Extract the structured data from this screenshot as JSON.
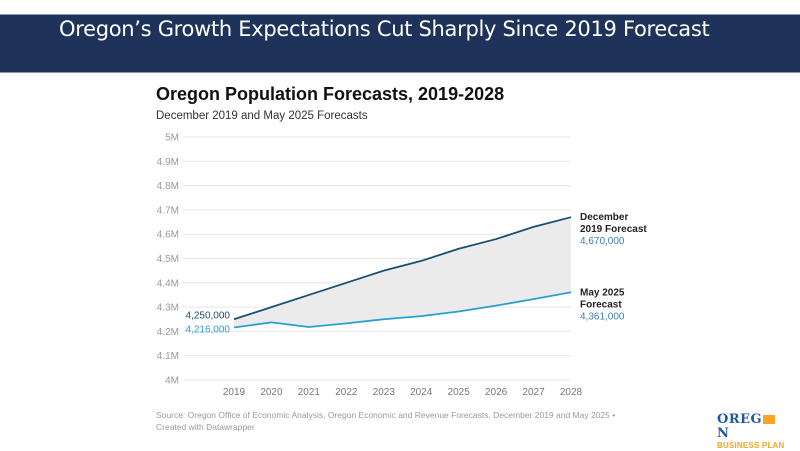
{
  "banner": {
    "title": "Oregon’s Growth Expectations Cut Sharply Since 2019 Forecast"
  },
  "chart_data": {
    "type": "line",
    "title": "Oregon Population Forecasts, 2019-2028",
    "subtitle": "December 2019 and May 2025 Forecasts",
    "xlabel": "",
    "ylabel": "",
    "x": [
      2019,
      2020,
      2021,
      2022,
      2023,
      2024,
      2025,
      2026,
      2027,
      2028
    ],
    "ylim": [
      4000000,
      5000000
    ],
    "yticks": [
      4000000,
      4100000,
      4200000,
      4300000,
      4400000,
      4500000,
      4600000,
      4700000,
      4800000,
      4900000,
      5000000
    ],
    "ytick_labels": [
      "4M",
      "4.1M",
      "4.2M",
      "4.3M",
      "4.4M",
      "4.5M",
      "4.6M",
      "4.7M",
      "4.8M",
      "4.9M",
      "5M"
    ],
    "xtick_labels": [
      "2019",
      "2020",
      "2021",
      "2022",
      "2023",
      "2024",
      "2025",
      "2026",
      "2027",
      "2028"
    ],
    "grid": true,
    "area_between_series": true,
    "series": [
      {
        "name": "December 2019 Forecast",
        "label_lines": [
          "December",
          "2019 Forecast"
        ],
        "color": "#1b4f72",
        "values": [
          4250000,
          4300000,
          4350000,
          4400000,
          4450000,
          4490000,
          4540000,
          4580000,
          4630000,
          4670000
        ],
        "start_label": "4,250,000",
        "end_label": "4,670,000"
      },
      {
        "name": "May 2025 Forecast",
        "label_lines": [
          "May 2025",
          "Forecast"
        ],
        "color": "#2a9fd0",
        "values": [
          4216000,
          4237000,
          4218000,
          4233000,
          4250000,
          4263000,
          4282000,
          4306000,
          4333000,
          4361000
        ],
        "start_label": "4,216,000",
        "end_label": "4,361,000"
      }
    ],
    "colors": {
      "area_fill": "#ebebeb",
      "grid": "#e6e6e6",
      "end_value_text": "#3a7fb0"
    }
  },
  "footer": {
    "source_line1": "Source: Oregon Office of Economic Analysis, Oregon Economic and Revenue Forecasts, December 2019 and May 2025 •",
    "source_line2": "Created with Datawrapper"
  },
  "logo": {
    "line1_a": "OREG",
    "line1_b": "N",
    "line2": "BUSINESS PLAN"
  }
}
